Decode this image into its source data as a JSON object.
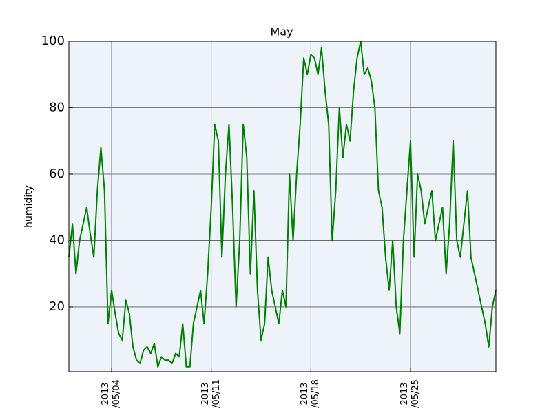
{
  "chart_data": {
    "type": "line",
    "title": "May",
    "y_label": "humidity",
    "x": [
      "2013-05-01 00:00",
      "2013-05-01 06:00",
      "2013-05-01 12:00",
      "2013-05-01 18:00",
      "2013-05-02 00:00",
      "2013-05-02 06:00",
      "2013-05-02 12:00",
      "2013-05-02 18:00",
      "2013-05-03 00:00",
      "2013-05-03 06:00",
      "2013-05-03 12:00",
      "2013-05-03 18:00",
      "2013-05-04 00:00",
      "2013-05-04 06:00",
      "2013-05-04 12:00",
      "2013-05-04 18:00",
      "2013-05-05 00:00",
      "2013-05-05 06:00",
      "2013-05-05 12:00",
      "2013-05-05 18:00",
      "2013-05-06 00:00",
      "2013-05-06 06:00",
      "2013-05-06 12:00",
      "2013-05-06 18:00",
      "2013-05-07 00:00",
      "2013-05-07 06:00",
      "2013-05-07 12:00",
      "2013-05-07 18:00",
      "2013-05-08 00:00",
      "2013-05-08 06:00",
      "2013-05-08 12:00",
      "2013-05-08 18:00",
      "2013-05-09 00:00",
      "2013-05-09 06:00",
      "2013-05-09 12:00",
      "2013-05-09 18:00",
      "2013-05-10 00:00",
      "2013-05-10 06:00",
      "2013-05-10 12:00",
      "2013-05-10 18:00",
      "2013-05-11 00:00",
      "2013-05-11 06:00",
      "2013-05-11 12:00",
      "2013-05-11 18:00",
      "2013-05-12 00:00",
      "2013-05-12 06:00",
      "2013-05-12 12:00",
      "2013-05-12 18:00",
      "2013-05-13 00:00",
      "2013-05-13 06:00",
      "2013-05-13 12:00",
      "2013-05-13 18:00",
      "2013-05-14 00:00",
      "2013-05-14 06:00",
      "2013-05-14 12:00",
      "2013-05-14 18:00",
      "2013-05-15 00:00",
      "2013-05-15 06:00",
      "2013-05-15 12:00",
      "2013-05-15 18:00",
      "2013-05-16 00:00",
      "2013-05-16 06:00",
      "2013-05-16 12:00",
      "2013-05-16 18:00",
      "2013-05-17 00:00",
      "2013-05-17 06:00",
      "2013-05-17 12:00",
      "2013-05-17 18:00",
      "2013-05-18 00:00",
      "2013-05-18 06:00",
      "2013-05-18 12:00",
      "2013-05-18 18:00",
      "2013-05-19 00:00",
      "2013-05-19 06:00",
      "2013-05-19 12:00",
      "2013-05-19 18:00",
      "2013-05-20 00:00",
      "2013-05-20 06:00",
      "2013-05-20 12:00",
      "2013-05-20 18:00",
      "2013-05-21 00:00",
      "2013-05-21 06:00",
      "2013-05-21 12:00",
      "2013-05-21 18:00",
      "2013-05-22 00:00",
      "2013-05-22 06:00",
      "2013-05-22 12:00",
      "2013-05-22 18:00",
      "2013-05-23 00:00",
      "2013-05-23 06:00",
      "2013-05-23 12:00",
      "2013-05-23 18:00",
      "2013-05-24 00:00",
      "2013-05-24 06:00",
      "2013-05-24 12:00",
      "2013-05-24 18:00",
      "2013-05-25 00:00",
      "2013-05-25 06:00",
      "2013-05-25 12:00",
      "2013-05-25 18:00",
      "2013-05-26 00:00",
      "2013-05-26 06:00",
      "2013-05-26 12:00",
      "2013-05-26 18:00",
      "2013-05-27 00:00",
      "2013-05-27 06:00",
      "2013-05-27 12:00",
      "2013-05-27 18:00",
      "2013-05-28 00:00",
      "2013-05-28 06:00",
      "2013-05-28 12:00",
      "2013-05-28 18:00",
      "2013-05-29 00:00",
      "2013-05-29 06:00",
      "2013-05-29 12:00",
      "2013-05-29 18:00",
      "2013-05-30 00:00",
      "2013-05-30 06:00",
      "2013-05-30 12:00",
      "2013-05-30 18:00",
      "2013-05-31 00:00"
    ],
    "series": [
      {
        "name": "humidity",
        "color": "#008000",
        "values": [
          35,
          45,
          30,
          40,
          45,
          50,
          42,
          35,
          55,
          68,
          55,
          15,
          25,
          18,
          12,
          10,
          22,
          18,
          8,
          4,
          3,
          7,
          8,
          6,
          9,
          2,
          5,
          4,
          4,
          3,
          6,
          5,
          15,
          2,
          2,
          15,
          20,
          25,
          15,
          30,
          50,
          75,
          70,
          35,
          60,
          75,
          50,
          20,
          40,
          75,
          65,
          30,
          55,
          25,
          10,
          15,
          35,
          25,
          20,
          15,
          25,
          20,
          60,
          40,
          60,
          75,
          95,
          90,
          96,
          95,
          90,
          98,
          85,
          75,
          40,
          55,
          80,
          65,
          75,
          70,
          85,
          95,
          100,
          90,
          92,
          88,
          80,
          55,
          50,
          35,
          25,
          40,
          20,
          12,
          40,
          55,
          70,
          35,
          60,
          55,
          45,
          50,
          55,
          40,
          45,
          50,
          30,
          45,
          70,
          40,
          35,
          45,
          55,
          35,
          30,
          25,
          20,
          15,
          8,
          20,
          25
        ]
      }
    ],
    "xlim": [
      "2013-05-01 00:00",
      "2013-05-31 00:00"
    ],
    "xticks": [
      {
        "value": "2013-05-04 00:00",
        "label": "2013\n/05/04"
      },
      {
        "value": "2013-05-11 00:00",
        "label": "2013\n/05/11"
      },
      {
        "value": "2013-05-18 00:00",
        "label": "2013\n/05/18"
      },
      {
        "value": "2013-05-25 00:00",
        "label": "2013\n/05/25"
      }
    ],
    "ylim": [
      0.5,
      100
    ],
    "yticks": [
      20,
      40,
      60,
      80,
      100
    ],
    "grid": true,
    "background": "#edf3f9"
  }
}
